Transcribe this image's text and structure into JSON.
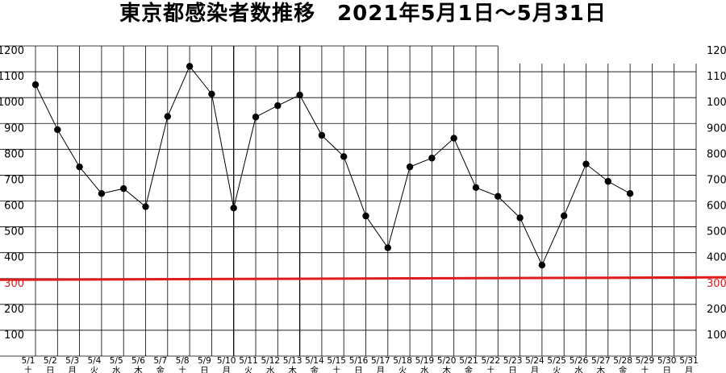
{
  "chart_data": {
    "type": "line",
    "title": "東京都感染者数推移　2021年5月1日～5月31日",
    "x": [
      "5/1",
      "5/2",
      "5/3",
      "5/4",
      "5/5",
      "5/6",
      "5/7",
      "5/8",
      "5/9",
      "5/10",
      "5/11",
      "5/12",
      "5/13",
      "5/14",
      "5/15",
      "5/16",
      "5/17",
      "5/18",
      "5/19",
      "5/20",
      "5/21",
      "5/22",
      "5/23",
      "5/24",
      "5/25",
      "5/26",
      "5/27",
      "5/28",
      "5/29",
      "5/30",
      "5/31"
    ],
    "weekdays": [
      "土",
      "日",
      "月",
      "火",
      "水",
      "木",
      "金",
      "土",
      "日",
      "月",
      "火",
      "水",
      "木",
      "金",
      "土",
      "日",
      "月",
      "火",
      "水",
      "木",
      "金",
      "土",
      "日",
      "月",
      "火",
      "水",
      "木",
      "金",
      "土",
      "日",
      "月"
    ],
    "series": [
      {
        "values": [
          1050,
          876,
          732,
          629,
          648,
          578,
          927,
          1121,
          1014,
          573,
          925,
          969,
          1010,
          854,
          772,
          542,
          419,
          732,
          766,
          843,
          652,
          618,
          535,
          352,
          543,
          743,
          676,
          629,
          null,
          null,
          null
        ]
      }
    ],
    "y_ticks": [
      100,
      200,
      300,
      400,
      500,
      600,
      700,
      800,
      900,
      1000,
      1100,
      1200
    ],
    "ylim": [
      0,
      1200
    ],
    "reference_line": {
      "value": 300,
      "label": "300",
      "color": "#e01b1b"
    },
    "grid": true,
    "line_color": "#000000",
    "marker_color": "#000000"
  }
}
